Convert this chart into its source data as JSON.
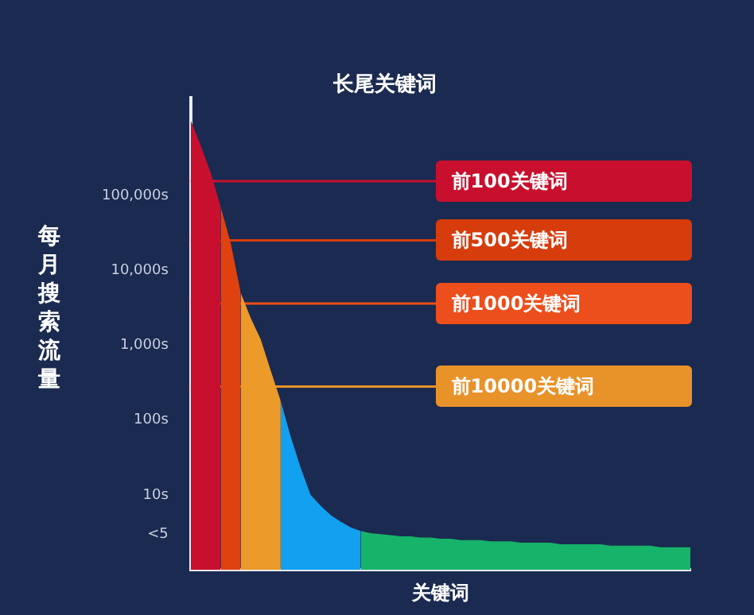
{
  "chart_data": {
    "type": "area",
    "title": "长尾关键词",
    "xlabel": "关键词",
    "ylabel": "每月搜索流量",
    "categories": [
      null,
      null,
      null,
      null,
      null,
      null,
      null,
      null,
      null,
      null,
      null,
      null,
      null,
      null,
      null,
      null,
      null,
      null,
      null,
      null,
      null,
      null,
      null,
      null,
      null,
      null,
      null,
      null,
      null,
      null,
      null,
      null,
      null,
      null,
      null,
      null,
      null,
      null,
      null,
      null,
      null,
      null,
      null,
      null,
      null,
      null,
      null,
      null,
      null,
      null,
      null
    ],
    "series": [
      {
        "color": "#c8102e",
        "values": [
          1000000,
          460000,
          200000,
          70000,
          null,
          null,
          null,
          null,
          null,
          null,
          null,
          null,
          null,
          null,
          null,
          null,
          null,
          null,
          null,
          null,
          null,
          null,
          null,
          null,
          null,
          null,
          null,
          null,
          null,
          null,
          null,
          null,
          null,
          null,
          null,
          null,
          null,
          null,
          null,
          null,
          null,
          null,
          null,
          null,
          null,
          null,
          null,
          null,
          null,
          null,
          null
        ]
      },
      {
        "color": "#e0420f",
        "values": [
          null,
          null,
          null,
          70000,
          23000,
          5000,
          null,
          null,
          null,
          null,
          null,
          null,
          null,
          null,
          null,
          null,
          null,
          null,
          null,
          null,
          null,
          null,
          null,
          null,
          null,
          null,
          null,
          null,
          null,
          null,
          null,
          null,
          null,
          null,
          null,
          null,
          null,
          null,
          null,
          null,
          null,
          null,
          null,
          null,
          null,
          null,
          null,
          null,
          null,
          null,
          null
        ]
      },
      {
        "color": "#ec9a2a",
        "values": [
          null,
          null,
          null,
          null,
          null,
          5000,
          2300,
          1200,
          460,
          180,
          null,
          null,
          null,
          null,
          null,
          null,
          null,
          null,
          null,
          null,
          null,
          null,
          null,
          null,
          null,
          null,
          null,
          null,
          null,
          null,
          null,
          null,
          null,
          null,
          null,
          null,
          null,
          null,
          null,
          null,
          null,
          null,
          null,
          null,
          null,
          null,
          null,
          null,
          null,
          null,
          null
        ]
      },
      {
        "color": "#12a0f0",
        "values": [
          null,
          null,
          null,
          null,
          null,
          null,
          null,
          null,
          null,
          180,
          60,
          23,
          10,
          7.2,
          5.4,
          4.4,
          3.7,
          3.3,
          null,
          null,
          null,
          null,
          null,
          null,
          null,
          null,
          null,
          null,
          null,
          null,
          null,
          null,
          null,
          null,
          null,
          null,
          null,
          null,
          null,
          null,
          null,
          null,
          null,
          null,
          null,
          null,
          null,
          null,
          null,
          null,
          null
        ]
      },
      {
        "color": "#16b36a",
        "values": [
          null,
          null,
          null,
          null,
          null,
          null,
          null,
          null,
          null,
          null,
          null,
          null,
          null,
          null,
          null,
          null,
          null,
          3.3,
          3.1,
          3.0,
          2.9,
          2.8,
          2.8,
          2.7,
          2.7,
          2.6,
          2.6,
          2.5,
          2.5,
          2.5,
          2.4,
          2.4,
          2.4,
          2.3,
          2.3,
          2.3,
          2.3,
          2.2,
          2.2,
          2.2,
          2.2,
          2.2,
          2.1,
          2.1,
          2.1,
          2.1,
          2.1,
          2.0,
          2.0,
          2.0,
          2.0
        ]
      }
    ],
    "log": true,
    "ylim": [
      1,
      2000000
    ],
    "yticks": [
      {
        "value": 3,
        "label": "<5"
      },
      {
        "value": 10,
        "label": "10s"
      },
      {
        "value": 100,
        "label": "100s"
      },
      {
        "value": 1000,
        "label": "1,000s"
      },
      {
        "value": 10000,
        "label": "10,000s"
      },
      {
        "value": 100000,
        "label": "100,000s"
      }
    ],
    "ref_lines": [
      {
        "axis": "y",
        "value": 155000,
        "label": "前100关键词",
        "color": "#c8102e"
      },
      {
        "axis": "y",
        "value": 25000,
        "label": "前500关键词",
        "color": "#d63c0c"
      },
      {
        "axis": "y",
        "value": 3600,
        "label": "前1000关键词",
        "color": "#ec4e1c"
      },
      {
        "axis": "y",
        "value": 280,
        "label": "前10000关键词",
        "color": "#e8922a"
      }
    ],
    "tick_labels": "y",
    "grid": false,
    "legend": false
  }
}
